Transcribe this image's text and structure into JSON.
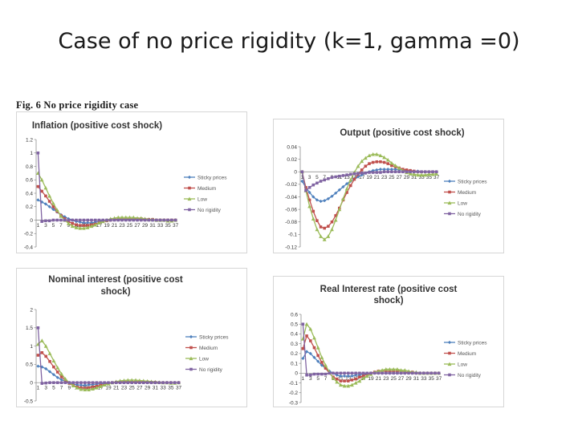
{
  "slide": {
    "title": "Case of no price rigidity (k=1, gamma =0)",
    "figure_caption": "Fig. 6 No price rigidity case"
  },
  "colors": {
    "sticky": "#4f81bd",
    "medium": "#c0504d",
    "low": "#9bbb59",
    "no_rigidity": "#8064a2",
    "axis": "#7f7f7f"
  },
  "chart_data": [
    {
      "id": "inflation",
      "type": "line",
      "title_lines": [
        "Inflation (positive cost shock)"
      ],
      "x": [
        1,
        2,
        3,
        4,
        5,
        6,
        7,
        8,
        9,
        10,
        11,
        12,
        13,
        14,
        15,
        16,
        17,
        18,
        19,
        20,
        21,
        22,
        23,
        24,
        25,
        26,
        27,
        28,
        29,
        30,
        31,
        32,
        33,
        34,
        35,
        36,
        37
      ],
      "x_tick_labels": [
        "1",
        "3",
        "5",
        "7",
        "9",
        "11",
        "13",
        "15",
        "17",
        "19",
        "21",
        "23",
        "25",
        "27",
        "29",
        "31",
        "33",
        "35",
        "37"
      ],
      "y_ticks": [
        "1.2",
        "1",
        "0.8",
        "0.6",
        "0.4",
        "0.2",
        "0",
        "-0.2",
        "-0.4"
      ],
      "ylim": [
        -0.4,
        1.2
      ],
      "legend": [
        "Sticky prices",
        "Medium",
        "Low",
        "No rigidity"
      ],
      "series": [
        {
          "name": "Sticky prices",
          "values": [
            0.3,
            0.27,
            0.24,
            0.2,
            0.16,
            0.12,
            0.08,
            0.05,
            0.02,
            0,
            -0.02,
            -0.03,
            -0.04,
            -0.04,
            -0.04,
            -0.03,
            -0.02,
            -0.01,
            0,
            0,
            0.01,
            0.01,
            0.01,
            0.01,
            0.01,
            0.01,
            0.01,
            0.01,
            0.01,
            0.01,
            0,
            0,
            0,
            0,
            0,
            0,
            0
          ]
        },
        {
          "name": "Medium",
          "values": [
            0.5,
            0.43,
            0.36,
            0.28,
            0.2,
            0.13,
            0.07,
            0.02,
            -0.02,
            -0.05,
            -0.07,
            -0.08,
            -0.08,
            -0.08,
            -0.07,
            -0.06,
            -0.04,
            -0.02,
            -0.01,
            0,
            0.01,
            0.02,
            0.02,
            0.02,
            0.02,
            0.02,
            0.02,
            0.02,
            0.01,
            0.01,
            0.01,
            0,
            0,
            0,
            0,
            0,
            0
          ]
        },
        {
          "name": "Low",
          "values": [
            0.7,
            0.6,
            0.48,
            0.36,
            0.25,
            0.15,
            0.06,
            0,
            -0.05,
            -0.09,
            -0.11,
            -0.12,
            -0.12,
            -0.11,
            -0.09,
            -0.07,
            -0.04,
            -0.02,
            0,
            0.02,
            0.03,
            0.04,
            0.04,
            0.04,
            0.04,
            0.04,
            0.03,
            0.03,
            0.02,
            0.01,
            0.01,
            0,
            0,
            0,
            -0.01,
            -0.01,
            0
          ]
        },
        {
          "name": "No rigidity",
          "values": [
            1,
            -0.02,
            -0.01,
            -0.01,
            0,
            0,
            0,
            0,
            0,
            0,
            0,
            0,
            0,
            0,
            0,
            0,
            0,
            0,
            0,
            0,
            0,
            0,
            0,
            0,
            0,
            0,
            0,
            0,
            0,
            0,
            0,
            0,
            0,
            0,
            0,
            0,
            0
          ]
        }
      ]
    },
    {
      "id": "output",
      "type": "line",
      "title_lines": [
        "Output (positive cost shock)"
      ],
      "x": [
        1,
        2,
        3,
        4,
        5,
        6,
        7,
        8,
        9,
        10,
        11,
        12,
        13,
        14,
        15,
        16,
        17,
        18,
        19,
        20,
        21,
        22,
        23,
        24,
        25,
        26,
        27,
        28,
        29,
        30,
        31,
        32,
        33,
        34,
        35,
        36,
        37
      ],
      "x_tick_labels": [
        "1",
        "3",
        "5",
        "7",
        "9",
        "11",
        "13",
        "15",
        "17",
        "19",
        "21",
        "23",
        "25",
        "27",
        "29",
        "31",
        "33",
        "35",
        "37"
      ],
      "y_ticks": [
        "0.04",
        "0.02",
        "0",
        "-0.02",
        "-0.04",
        "-0.06",
        "-0.08",
        "-0.1",
        "-0.12"
      ],
      "ylim": [
        -0.12,
        0.04
      ],
      "legend": [
        "Sticky prices",
        "Medium",
        "Low",
        "No rigidity"
      ],
      "series": [
        {
          "name": "Sticky prices",
          "values": [
            -0.015,
            -0.025,
            -0.033,
            -0.04,
            -0.045,
            -0.047,
            -0.046,
            -0.043,
            -0.039,
            -0.034,
            -0.029,
            -0.024,
            -0.019,
            -0.015,
            -0.011,
            -0.008,
            -0.005,
            -0.002,
            0,
            0.002,
            0.003,
            0.004,
            0.004,
            0.004,
            0.004,
            0.004,
            0.003,
            0.003,
            0.002,
            0.002,
            0.001,
            0.001,
            0,
            0,
            0,
            0,
            0
          ]
        },
        {
          "name": "Medium",
          "values": [
            0,
            -0.025,
            -0.045,
            -0.063,
            -0.078,
            -0.088,
            -0.09,
            -0.087,
            -0.08,
            -0.07,
            -0.058,
            -0.045,
            -0.033,
            -0.022,
            -0.012,
            -0.004,
            0.003,
            0.009,
            0.013,
            0.015,
            0.016,
            0.016,
            0.015,
            0.013,
            0.01,
            0.008,
            0.006,
            0.004,
            0.003,
            0.002,
            0.001,
            0,
            0,
            0,
            0,
            0,
            0
          ]
        },
        {
          "name": "Low",
          "values": [
            0,
            -0.03,
            -0.055,
            -0.075,
            -0.092,
            -0.103,
            -0.108,
            -0.103,
            -0.092,
            -0.077,
            -0.06,
            -0.043,
            -0.027,
            -0.013,
            -0.001,
            0.009,
            0.017,
            0.022,
            0.026,
            0.028,
            0.028,
            0.026,
            0.023,
            0.019,
            0.014,
            0.01,
            0.006,
            0.002,
            -0.001,
            -0.003,
            -0.004,
            -0.005,
            -0.005,
            -0.005,
            -0.004,
            -0.004,
            -0.003
          ]
        },
        {
          "name": "No rigidity",
          "values": [
            0,
            -0.03,
            -0.025,
            -0.021,
            -0.018,
            -0.015,
            -0.013,
            -0.011,
            -0.009,
            -0.008,
            -0.007,
            -0.006,
            -0.005,
            -0.004,
            -0.003,
            -0.003,
            -0.002,
            -0.002,
            -0.001,
            -0.001,
            -0.001,
            -0.001,
            0,
            0,
            0,
            0,
            0,
            0,
            0,
            0,
            0,
            0,
            0,
            0,
            0,
            0,
            0
          ]
        }
      ]
    },
    {
      "id": "nominal",
      "type": "line",
      "title_lines": [
        "Nominal interest (positive cost",
        "shock)"
      ],
      "x": [
        1,
        2,
        3,
        4,
        5,
        6,
        7,
        8,
        9,
        10,
        11,
        12,
        13,
        14,
        15,
        16,
        17,
        18,
        19,
        20,
        21,
        22,
        23,
        24,
        25,
        26,
        27,
        28,
        29,
        30,
        31,
        32,
        33,
        34,
        35,
        36,
        37
      ],
      "x_tick_labels": [
        "1",
        "3",
        "5",
        "7",
        "9",
        "11",
        "13",
        "15",
        "17",
        "19",
        "21",
        "23",
        "25",
        "27",
        "29",
        "31",
        "33",
        "35",
        "37"
      ],
      "y_ticks": [
        "2",
        "1.5",
        "1",
        "0.5",
        "0",
        "-0.5"
      ],
      "ylim": [
        -0.5,
        2
      ],
      "legend": [
        "Sticky prices",
        "Medium",
        "Low",
        "No rigidity"
      ],
      "series": [
        {
          "name": "Sticky prices",
          "values": [
            0.45,
            0.43,
            0.38,
            0.3,
            0.22,
            0.14,
            0.08,
            0.03,
            -0.01,
            -0.04,
            -0.06,
            -0.07,
            -0.07,
            -0.06,
            -0.05,
            -0.04,
            -0.03,
            -0.02,
            -0.01,
            0,
            0.01,
            0.01,
            0.01,
            0.01,
            0.01,
            0.01,
            0.01,
            0,
            0,
            0,
            0,
            0,
            0,
            0,
            0,
            0,
            0
          ]
        },
        {
          "name": "Medium",
          "values": [
            0.75,
            0.82,
            0.72,
            0.58,
            0.43,
            0.29,
            0.16,
            0.06,
            -0.02,
            -0.08,
            -0.12,
            -0.14,
            -0.15,
            -0.14,
            -0.12,
            -0.1,
            -0.07,
            -0.05,
            -0.02,
            0,
            0.01,
            0.02,
            0.03,
            0.03,
            0.03,
            0.03,
            0.03,
            0.02,
            0.02,
            0.01,
            0.01,
            0,
            0,
            0,
            0,
            0,
            0
          ]
        },
        {
          "name": "Low",
          "values": [
            1.05,
            1.15,
            1,
            0.8,
            0.6,
            0.41,
            0.24,
            0.1,
            0,
            -0.08,
            -0.14,
            -0.18,
            -0.19,
            -0.19,
            -0.17,
            -0.14,
            -0.1,
            -0.06,
            -0.03,
            0,
            0.03,
            0.05,
            0.06,
            0.07,
            0.07,
            0.07,
            0.06,
            0.05,
            0.04,
            0.03,
            0.02,
            0.01,
            0,
            0,
            -0.01,
            -0.01,
            0
          ]
        },
        {
          "name": "No rigidity",
          "values": [
            1.5,
            -0.02,
            -0.01,
            0,
            0,
            0,
            0,
            0,
            0,
            0,
            0,
            0,
            0,
            0,
            0,
            0,
            0,
            0,
            0,
            0,
            0,
            0,
            0,
            0,
            0,
            0,
            0,
            0,
            0,
            0,
            0,
            0,
            0,
            0,
            0,
            0,
            0
          ]
        }
      ]
    },
    {
      "id": "real",
      "type": "line",
      "title_lines": [
        "Real Interest rate (positive cost",
        "shock)"
      ],
      "x": [
        1,
        2,
        3,
        4,
        5,
        6,
        7,
        8,
        9,
        10,
        11,
        12,
        13,
        14,
        15,
        16,
        17,
        18,
        19,
        20,
        21,
        22,
        23,
        24,
        25,
        26,
        27,
        28,
        29,
        30,
        31,
        32,
        33,
        34,
        35,
        36,
        37
      ],
      "x_tick_labels": [
        "1",
        "3",
        "5",
        "7",
        "9",
        "11",
        "13",
        "15",
        "17",
        "19",
        "21",
        "23",
        "25",
        "27",
        "29",
        "31",
        "33",
        "35",
        "37"
      ],
      "y_ticks": [
        "0.6",
        "0.5",
        "0.4",
        "0.3",
        "0.2",
        "0.1",
        "0",
        "-0.1",
        "-0.2",
        "-0.3"
      ],
      "ylim": [
        -0.3,
        0.6
      ],
      "legend": [
        "Sticky prices",
        "Medium",
        "Low",
        "No rigidity"
      ],
      "series": [
        {
          "name": "Sticky prices",
          "values": [
            0.15,
            0.22,
            0.2,
            0.16,
            0.12,
            0.08,
            0.05,
            0.02,
            0,
            -0.02,
            -0.03,
            -0.03,
            -0.03,
            -0.03,
            -0.02,
            -0.02,
            -0.01,
            -0.01,
            0,
            0,
            0,
            0,
            0,
            0,
            0,
            0,
            0,
            0,
            0,
            0,
            0,
            0,
            0,
            0,
            0,
            0,
            0
          ]
        },
        {
          "name": "Medium",
          "values": [
            0.25,
            0.38,
            0.33,
            0.26,
            0.18,
            0.11,
            0.05,
            0,
            -0.04,
            -0.06,
            -0.08,
            -0.08,
            -0.08,
            -0.07,
            -0.06,
            -0.04,
            -0.03,
            -0.01,
            0,
            0.01,
            0.02,
            0.02,
            0.02,
            0.02,
            0.02,
            0.02,
            0.02,
            0.01,
            0.01,
            0.01,
            0,
            0,
            0,
            0,
            0,
            0,
            0
          ]
        },
        {
          "name": "Low",
          "values": [
            0.35,
            0.5,
            0.45,
            0.36,
            0.26,
            0.16,
            0.08,
            0.01,
            -0.05,
            -0.09,
            -0.12,
            -0.13,
            -0.13,
            -0.12,
            -0.1,
            -0.08,
            -0.05,
            -0.03,
            -0.01,
            0.01,
            0.02,
            0.03,
            0.04,
            0.04,
            0.04,
            0.04,
            0.03,
            0.03,
            0.02,
            0.01,
            0.01,
            0,
            0,
            0,
            0,
            0,
            0
          ]
        },
        {
          "name": "No rigidity",
          "values": [
            0.5,
            -0.02,
            -0.02,
            -0.01,
            -0.01,
            -0.01,
            -0.01,
            0,
            0,
            0,
            0,
            0,
            0,
            0,
            0,
            0,
            0,
            0,
            0,
            0,
            0,
            0,
            0,
            0,
            0,
            0,
            0,
            0,
            0,
            0,
            0,
            0,
            0,
            0,
            0,
            0,
            0
          ]
        }
      ]
    }
  ]
}
